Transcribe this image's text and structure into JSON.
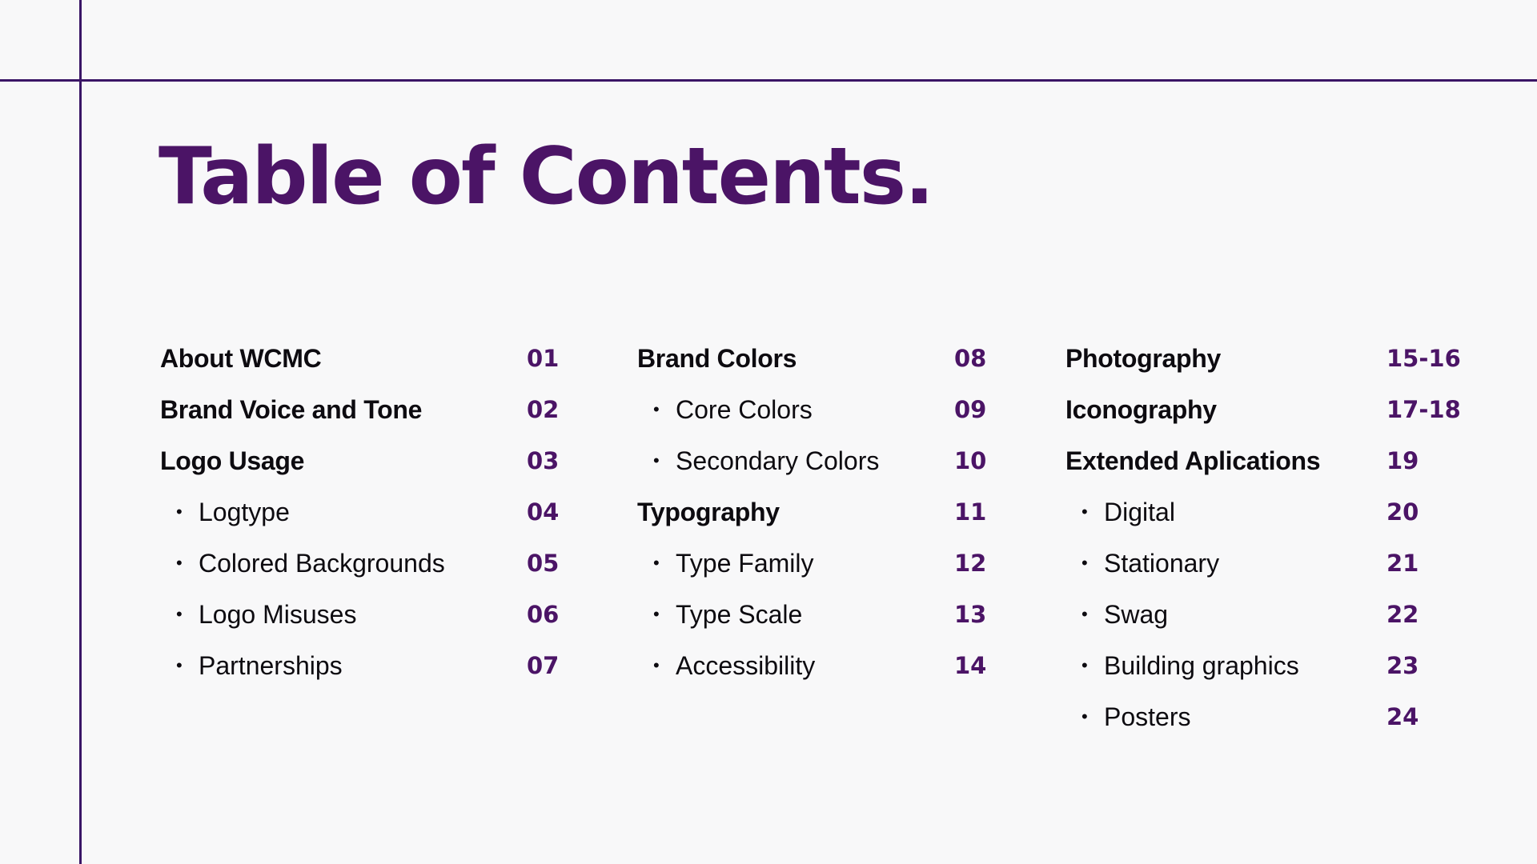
{
  "title": "Table of Contents.",
  "colors": {
    "accent": "#4b1466",
    "rule": "#3a1566",
    "text": "#0d0b10",
    "background": "#f8f8f9"
  },
  "columns": [
    {
      "entries": [
        {
          "type": "main",
          "label": "About WCMC",
          "page": "01"
        },
        {
          "type": "main",
          "label": "Brand Voice and Tone",
          "page": "02"
        },
        {
          "type": "main",
          "label": "Logo Usage",
          "page": "03"
        },
        {
          "type": "sub",
          "label": "Logtype",
          "page": "04"
        },
        {
          "type": "sub",
          "label": "Colored Backgrounds",
          "page": "05"
        },
        {
          "type": "sub",
          "label": "Logo Misuses",
          "page": "06"
        },
        {
          "type": "sub",
          "label": "Partnerships",
          "page": "07"
        }
      ]
    },
    {
      "entries": [
        {
          "type": "main",
          "label": "Brand Colors",
          "page": "08"
        },
        {
          "type": "sub",
          "label": "Core Colors",
          "page": "09"
        },
        {
          "type": "sub",
          "label": "Secondary Colors",
          "page": "10"
        },
        {
          "type": "main",
          "label": "Typography",
          "page": "11"
        },
        {
          "type": "sub",
          "label": "Type Family",
          "page": "12"
        },
        {
          "type": "sub",
          "label": "Type Scale",
          "page": "13"
        },
        {
          "type": "sub",
          "label": "Accessibility",
          "page": "14"
        }
      ]
    },
    {
      "entries": [
        {
          "type": "main",
          "label": "Photography",
          "page": "15-16"
        },
        {
          "type": "main",
          "label": "Iconography",
          "page": "17-18"
        },
        {
          "type": "main",
          "label": "Extended Aplications",
          "page": "19"
        },
        {
          "type": "sub",
          "label": "Digital",
          "page": "20"
        },
        {
          "type": "sub",
          "label": "Stationary",
          "page": "21"
        },
        {
          "type": "sub",
          "label": "Swag",
          "page": "22"
        },
        {
          "type": "sub",
          "label": "Building graphics",
          "page": "23"
        },
        {
          "type": "sub",
          "label": "Posters",
          "page": "24"
        }
      ]
    }
  ]
}
